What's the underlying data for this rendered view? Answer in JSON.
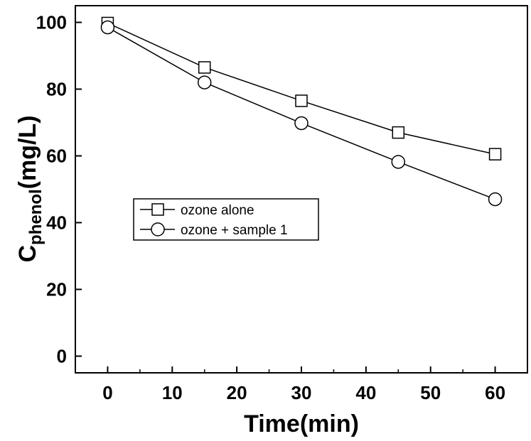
{
  "chart_data": {
    "type": "line",
    "xlabel": "Time(min)",
    "ylabel_main": "C",
    "ylabel_sub": "phenol",
    "ylabel_unit": "(mg/L)",
    "xlim": [
      -5,
      65
    ],
    "ylim": [
      -5,
      105
    ],
    "x_ticks": [
      0,
      10,
      20,
      30,
      40,
      50,
      60
    ],
    "y_ticks": [
      0,
      20,
      40,
      60,
      80,
      100
    ],
    "grid": false,
    "legend_position": "center-left",
    "series": [
      {
        "name": "ozone alone",
        "marker": "square",
        "x": [
          0,
          15,
          30,
          45,
          60
        ],
        "y": [
          99.8,
          86.5,
          76.5,
          67.0,
          60.5
        ]
      },
      {
        "name": "ozone + sample 1",
        "marker": "circle",
        "x": [
          0,
          15,
          30,
          45,
          60
        ],
        "y": [
          98.5,
          82.0,
          69.8,
          58.2,
          47.0
        ]
      }
    ]
  }
}
